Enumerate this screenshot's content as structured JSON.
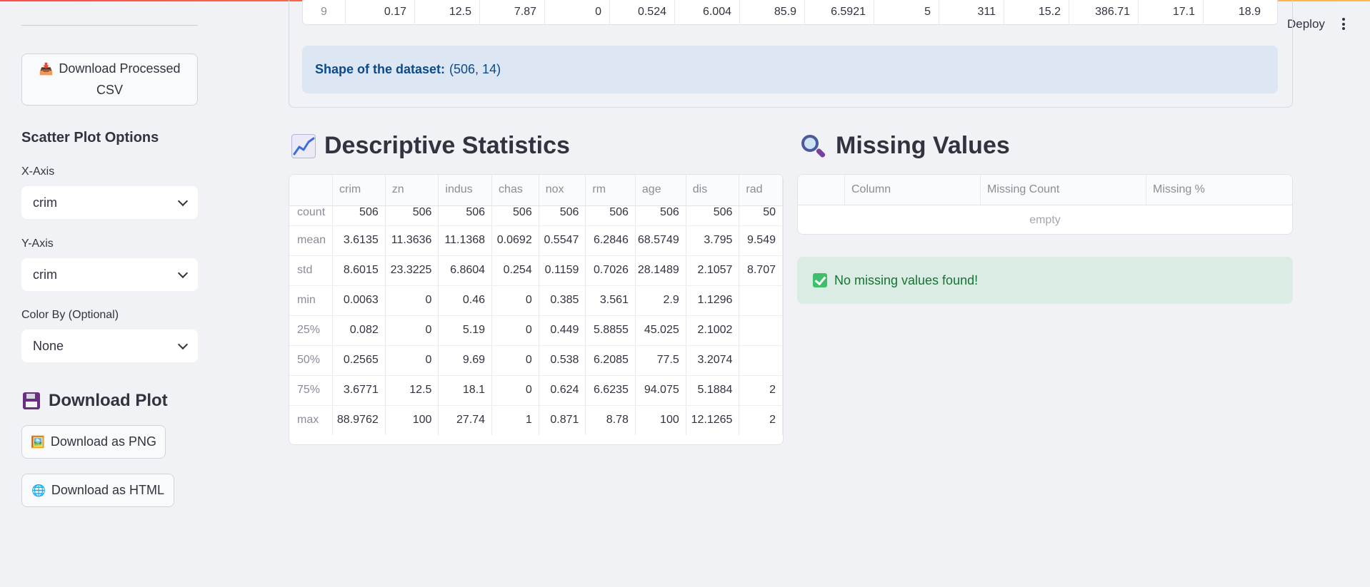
{
  "header": {
    "deploy_label": "Deploy"
  },
  "sidebar": {
    "download_csv_label": "Download Processed CSV",
    "download_csv_icon": "inbox-tray-icon",
    "scatter_heading": "Scatter Plot Options",
    "x_axis": {
      "label": "X-Axis",
      "value": "crim"
    },
    "y_axis": {
      "label": "Y-Axis",
      "value": "crim"
    },
    "color_by": {
      "label": "Color By (Optional)",
      "value": "None"
    },
    "download_plot_heading": "Download Plot",
    "download_png_label": "Download as PNG",
    "download_html_label": "Download as HTML"
  },
  "data_preview": {
    "last_row": [
      "9",
      "0.17",
      "12.5",
      "7.87",
      "0",
      "0.524",
      "6.004",
      "85.9",
      "6.5921",
      "5",
      "311",
      "15.2",
      "386.71",
      "17.1",
      "18.9"
    ],
    "shape_label": "Shape of the dataset:",
    "shape_value": "(506, 14)"
  },
  "descriptive": {
    "heading": "Descriptive Statistics",
    "columns": [
      "",
      "crim",
      "zn",
      "indus",
      "chas",
      "nox",
      "rm",
      "age",
      "dis",
      "rad"
    ],
    "rows": [
      [
        "count",
        "506",
        "506",
        "506",
        "506",
        "506",
        "506",
        "506",
        "506",
        "50"
      ],
      [
        "mean",
        "3.6135",
        "11.3636",
        "11.1368",
        "0.0692",
        "0.5547",
        "6.2846",
        "68.5749",
        "3.795",
        "9.549"
      ],
      [
        "std",
        "8.6015",
        "23.3225",
        "6.8604",
        "0.254",
        "0.1159",
        "0.7026",
        "28.1489",
        "2.1057",
        "8.707"
      ],
      [
        "min",
        "0.0063",
        "0",
        "0.46",
        "0",
        "0.385",
        "3.561",
        "2.9",
        "1.1296",
        ""
      ],
      [
        "25%",
        "0.082",
        "0",
        "5.19",
        "0",
        "0.449",
        "5.8855",
        "45.025",
        "2.1002",
        ""
      ],
      [
        "50%",
        "0.2565",
        "0",
        "9.69",
        "0",
        "0.538",
        "6.2085",
        "77.5",
        "3.2074",
        ""
      ],
      [
        "75%",
        "3.6771",
        "12.5",
        "18.1",
        "0",
        "0.624",
        "6.6235",
        "94.075",
        "5.1884",
        "2"
      ],
      [
        "max",
        "88.9762",
        "100",
        "27.74",
        "1",
        "0.871",
        "8.78",
        "100",
        "12.1265",
        "2"
      ]
    ]
  },
  "missing": {
    "heading": "Missing Values",
    "columns": [
      "",
      "Column",
      "Missing Count",
      "Missing %"
    ],
    "empty_text": "empty",
    "success_text": "No missing values found!"
  },
  "colors": {
    "info_bg": "#dde7f4",
    "info_text": "#0b4a8b",
    "success_bg": "#dbece4",
    "success_text": "#177233"
  }
}
